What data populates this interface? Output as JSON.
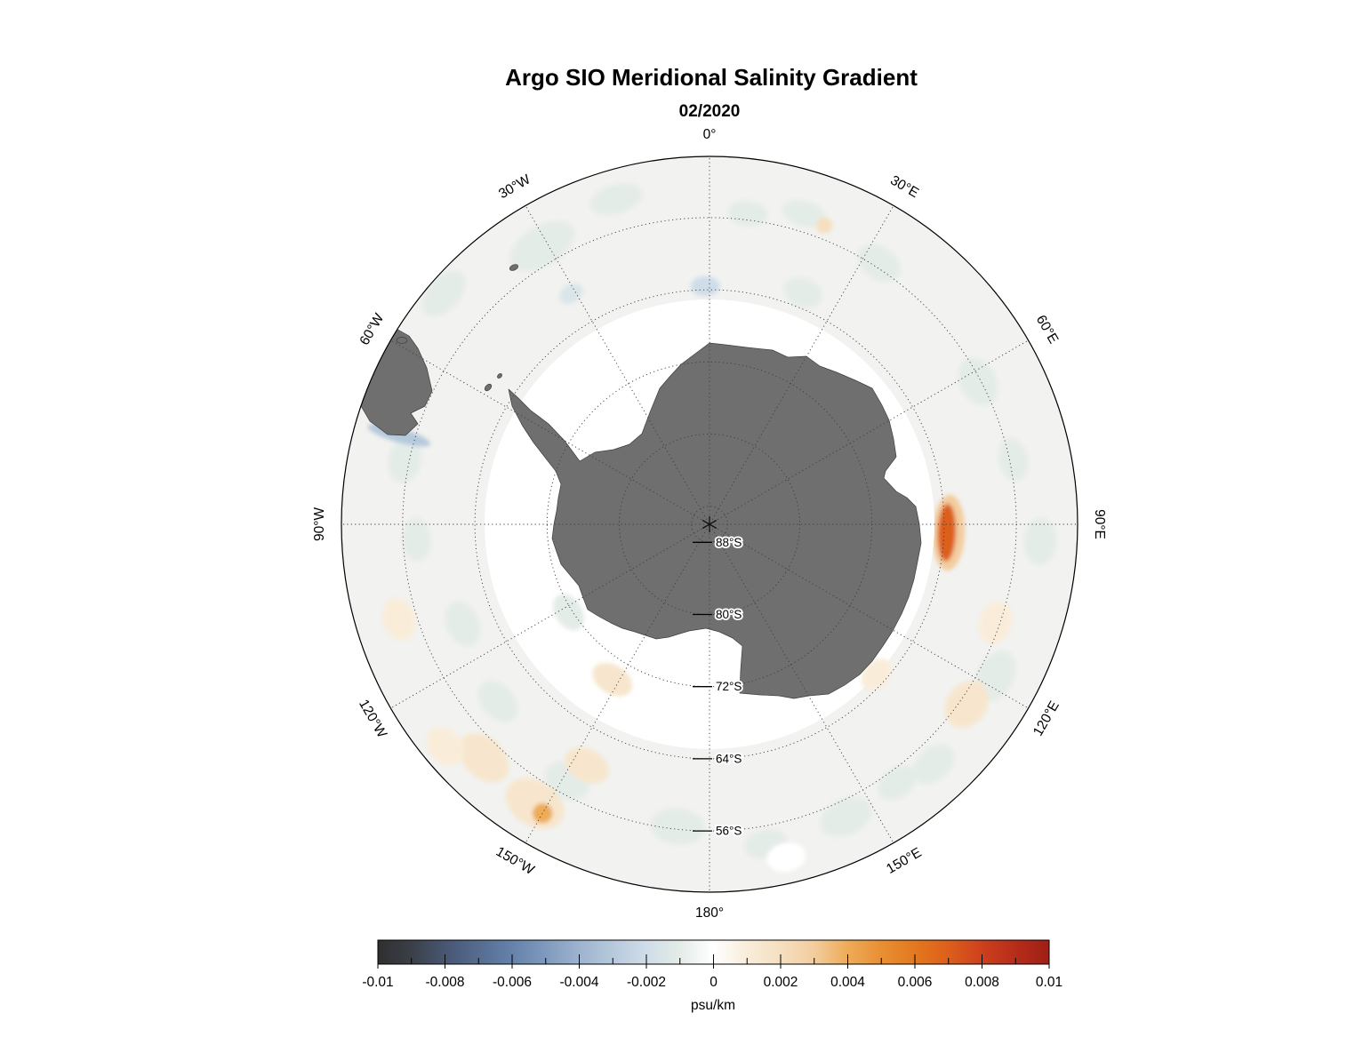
{
  "page": {
    "background": "#ffffff"
  },
  "chart_data": {
    "type": "heatmap",
    "title": "Argo SIO Meridional Salinity Gradient",
    "subtitle": "02/2020",
    "projection": "south-polar-stereographic",
    "colors": {
      "land": "#6f6f6f",
      "land_outline": "#3f3f3f",
      "field_base": "#f2f2f0",
      "no_data": "#ffffff",
      "graticule": "#3c3c3c",
      "map_border": "#000000",
      "text": "#000000"
    },
    "colorbar": {
      "unit": "psu/km",
      "min": -0.01,
      "max": 0.01,
      "tick_values": [
        -0.01,
        -0.008,
        -0.006,
        -0.004,
        -0.002,
        0,
        0.002,
        0.004,
        0.006,
        0.008,
        0.01
      ],
      "tick_labels": [
        "-0.01",
        "-0.008",
        "-0.006",
        "-0.004",
        "-0.002",
        "0",
        "0.002",
        "0.004",
        "0.006",
        "0.008",
        "0.01"
      ],
      "minor_tick_step": 0.001,
      "stops": [
        {
          "v": -0.01,
          "c": "#2f2f2f"
        },
        {
          "v": -0.009,
          "c": "#3a4048"
        },
        {
          "v": -0.008,
          "c": "#475672"
        },
        {
          "v": -0.007,
          "c": "#566c90"
        },
        {
          "v": -0.006,
          "c": "#6582ab"
        },
        {
          "v": -0.005,
          "c": "#7f9abd"
        },
        {
          "v": -0.004,
          "c": "#9db4cf"
        },
        {
          "v": -0.003,
          "c": "#b6c9dc"
        },
        {
          "v": -0.002,
          "c": "#cfdde9"
        },
        {
          "v": -0.001,
          "c": "#e4ece8"
        },
        {
          "v": 0,
          "c": "#ffffff"
        },
        {
          "v": 0.001,
          "c": "#f9edda"
        },
        {
          "v": 0.002,
          "c": "#f5dfc0"
        },
        {
          "v": 0.003,
          "c": "#f2cd9e"
        },
        {
          "v": 0.004,
          "c": "#eeab58"
        },
        {
          "v": 0.005,
          "c": "#e98f33"
        },
        {
          "v": 0.006,
          "c": "#e4781f"
        },
        {
          "v": 0.007,
          "c": "#dc5f1b"
        },
        {
          "v": 0.008,
          "c": "#cd401d"
        },
        {
          "v": 0.009,
          "c": "#b62d19"
        },
        {
          "v": 0.01,
          "c": "#9e1f15"
        }
      ]
    },
    "longitude_labels": [
      {
        "label": "0°",
        "deg": 0
      },
      {
        "label": "30°E",
        "deg": 30
      },
      {
        "label": "60°E",
        "deg": 60
      },
      {
        "label": "90°E",
        "deg": 90
      },
      {
        "label": "120°E",
        "deg": 120
      },
      {
        "label": "150°E",
        "deg": 150
      },
      {
        "label": "180°",
        "deg": 180
      },
      {
        "label": "150°W",
        "deg": 210
      },
      {
        "label": "120°W",
        "deg": 240
      },
      {
        "label": "90°W",
        "deg": 270
      },
      {
        "label": "60°W",
        "deg": 300
      },
      {
        "label": "30°W",
        "deg": 330
      }
    ],
    "latitude_rings": [
      {
        "label": "88°S",
        "lat": -88
      },
      {
        "label": "80°S",
        "lat": -80
      },
      {
        "label": "72°S",
        "lat": -72
      },
      {
        "label": "64°S",
        "lat": -64
      },
      {
        "label": "56°S",
        "lat": -56
      }
    ],
    "anomalies": [
      {
        "lon": -16,
        "lat": -52.5,
        "value": -0.001,
        "t": 3.0,
        "r": 1.6,
        "layer": "outer"
      },
      {
        "lon": -31,
        "lat": -54.0,
        "value": -0.001,
        "t": 4.0,
        "r": 2.2,
        "layer": "outer"
      },
      {
        "lon": 17,
        "lat": -54.0,
        "value": -0.001,
        "t": 2.5,
        "r": 1.4,
        "layer": "outer"
      },
      {
        "lon": 33,
        "lat": -55.5,
        "value": -0.001,
        "t": 2.6,
        "r": 1.8,
        "layer": "outer"
      },
      {
        "lon": -49,
        "lat": -51.0,
        "value": -0.001,
        "t": 3.0,
        "r": 1.8,
        "layer": "outer"
      },
      {
        "lon": -78,
        "lat": -55.5,
        "value": -0.001,
        "t": 2.6,
        "r": 1.8,
        "layer": "outer"
      },
      {
        "lon": -93,
        "lat": -57.5,
        "value": -0.001,
        "t": 2.4,
        "r": 1.6,
        "layer": "outer"
      },
      {
        "lon": -112,
        "lat": -60.5,
        "value": -0.001,
        "t": 2.6,
        "r": 1.8,
        "layer": "outer"
      },
      {
        "lon": 22,
        "lat": -62.3,
        "value": -0.001,
        "t": 2.2,
        "r": 1.6,
        "layer": "outer"
      },
      {
        "lon": 62,
        "lat": -56.3,
        "value": -0.001,
        "t": 2.8,
        "r": 2.0,
        "layer": "outer"
      },
      {
        "lon": 78,
        "lat": -55.6,
        "value": -0.001,
        "t": 2.4,
        "r": 1.6,
        "layer": "outer"
      },
      {
        "lon": 93,
        "lat": -53.3,
        "value": -0.001,
        "t": 2.6,
        "r": 1.8,
        "layer": "outer"
      },
      {
        "lon": 118,
        "lat": -54.1,
        "value": -0.001,
        "t": 3.0,
        "r": 2.0,
        "layer": "outer"
      },
      {
        "lon": 137,
        "lat": -53.6,
        "value": -0.001,
        "t": 2.6,
        "r": 1.8,
        "layer": "outer"
      },
      {
        "lon": 155,
        "lat": -54.2,
        "value": -0.001,
        "t": 3.0,
        "r": 2.0,
        "layer": "outer"
      },
      {
        "lon": 170,
        "lat": -54.0,
        "value": -0.001,
        "t": 2.4,
        "r": 1.6,
        "layer": "outer"
      },
      {
        "lon": -174,
        "lat": -56.3,
        "value": -0.001,
        "t": 3.0,
        "r": 2.0,
        "layer": "outer"
      },
      {
        "lon": -151,
        "lat": -57.5,
        "value": -0.001,
        "t": 2.6,
        "r": 2.0,
        "layer": "outer"
      },
      {
        "lon": -130,
        "lat": -59.4,
        "value": -0.001,
        "t": 2.6,
        "r": 1.8,
        "layer": "outer"
      },
      {
        "lon": 7,
        "lat": -55.3,
        "value": -0.001,
        "t": 2.2,
        "r": 1.4,
        "layer": "outer"
      },
      {
        "lon": 144,
        "lat": -54.6,
        "value": -0.001,
        "t": 2.4,
        "r": 1.6,
        "layer": "outer"
      },
      {
        "lon": -136,
        "lat": -54.0,
        "value": 0.0015,
        "t": 3.2,
        "r": 2.2,
        "layer": "outer"
      },
      {
        "lon": -153,
        "lat": -60.0,
        "value": 0.0015,
        "t": 2.6,
        "r": 1.8,
        "layer": "outer"
      },
      {
        "lon": 125,
        "lat": -55.2,
        "value": 0.0015,
        "t": 2.8,
        "r": 2.2,
        "layer": "outer"
      },
      {
        "lon": 109,
        "lat": -56.5,
        "value": 0.001,
        "t": 2.4,
        "r": 1.8,
        "layer": "outer"
      },
      {
        "lon": 21,
        "lat": -54.5,
        "value": 0.002,
        "t": 0.9,
        "r": 0.9,
        "layer": "outer"
      },
      {
        "lon": -107,
        "lat": -54.0,
        "value": 0.001,
        "t": 2.4,
        "r": 1.8,
        "layer": "outer"
      },
      {
        "lon": -130,
        "lat": -51.7,
        "value": 0.001,
        "t": 2.4,
        "r": 1.8,
        "layer": "outer"
      },
      {
        "lon": 167,
        "lat": -52.1,
        "value": 0,
        "t": 2.2,
        "r": 1.6,
        "layer": "outer"
      },
      {
        "lon": -1,
        "lat": -63.6,
        "value": -0.002,
        "t": 1.6,
        "r": 1.1,
        "layer": "outer"
      },
      {
        "lon": -31,
        "lat": -60.2,
        "value": -0.0015,
        "t": 1.4,
        "r": 1.0,
        "layer": "outer"
      },
      {
        "lon": -74,
        "lat": -54.2,
        "value": -0.003,
        "t": 0.8,
        "r": 3.6,
        "layer": "outer"
      },
      {
        "lon": -148,
        "lat": -53.5,
        "value": 0.0015,
        "t": 3.5,
        "r": 2.5,
        "layer": "outer"
      },
      {
        "lon": -150,
        "lat": -53.0,
        "value": 0.004,
        "t": 1.1,
        "r": 1.1,
        "layer": "outer"
      },
      {
        "lon": 92,
        "lat": -63.5,
        "value": 0.003,
        "t": 4.2,
        "r": 1.8,
        "layer": "outer"
      },
      {
        "lon": 92,
        "lat": -63.7,
        "value": 0.007,
        "t": 3.2,
        "r": 1.0,
        "layer": "outer"
      },
      {
        "lon": -122,
        "lat": -71.6,
        "value": -0.001,
        "t": 2.2,
        "r": 1.5,
        "layer": "inner"
      },
      {
        "lon": -148,
        "lat": -69.7,
        "value": 0.0015,
        "t": 2.4,
        "r": 1.6,
        "layer": "inner"
      },
      {
        "lon": 132,
        "lat": -65.1,
        "value": 0.001,
        "t": 2.0,
        "r": 1.4,
        "layer": "inner"
      }
    ],
    "notable_features": [
      "Strong positive anomaly (~+0.007 psu/km) near 92°E, 64°S",
      "Small positive spot (~+0.004 psu/km) near 150°W, 53°S",
      "Weak negative patch (~-0.002 psu/km) near 0°, 63.5°S",
      "Negative coastal streak (~-0.003 psu/km) south of Tierra del Fuego near 74°W, 54°S",
      "Background field mostly within ±0.001 psu/km between ~49°S and ~65°S; no data (white ring) south of ~66°S"
    ]
  }
}
